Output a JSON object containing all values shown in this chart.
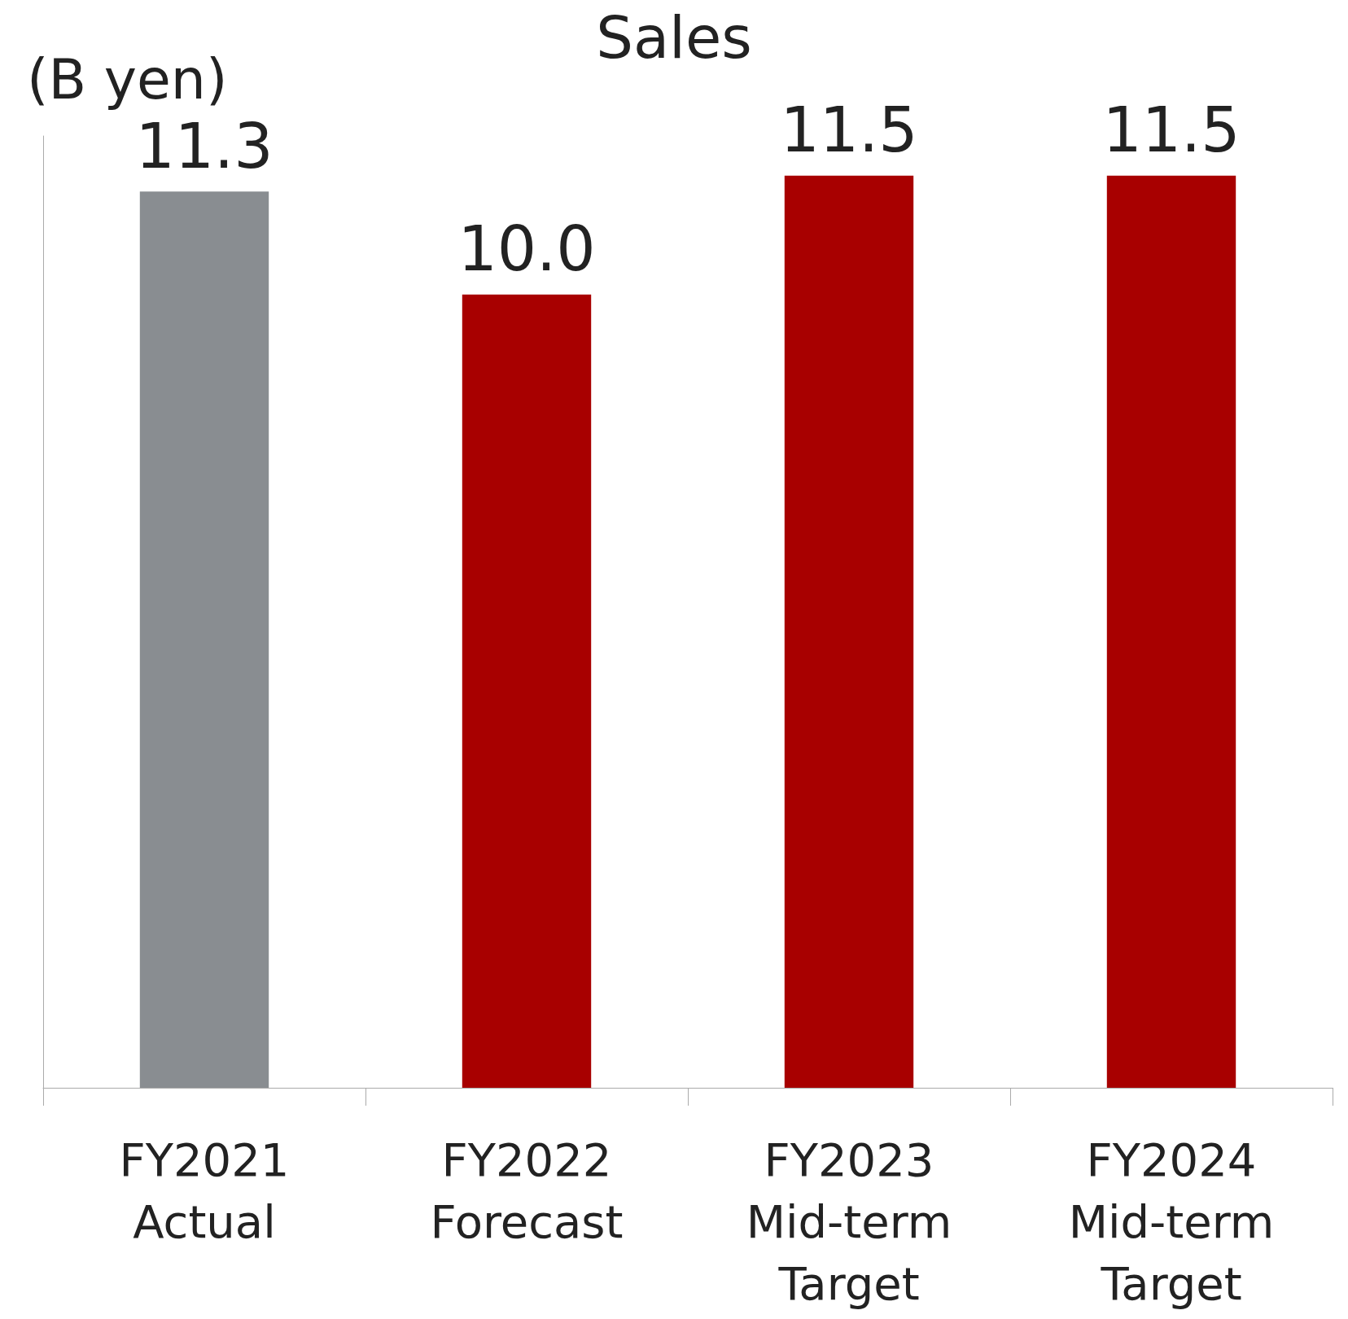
{
  "chart_data": {
    "type": "bar",
    "title": "Sales",
    "ylabel": "(B yen)",
    "categories": [
      "FY2021\nActual",
      "FY2022\nForecast",
      "FY2023\nMid-term\nTarget",
      "FY2024\nMid-term\nTarget"
    ],
    "values": [
      11.3,
      10.0,
      11.5,
      11.5
    ],
    "colors": [
      "#898d91",
      "#a80000",
      "#a80000",
      "#a80000"
    ],
    "value_labels": [
      "11.3",
      "10.0",
      "11.5",
      "11.5"
    ],
    "tick_labels": "x",
    "grid": false
  }
}
